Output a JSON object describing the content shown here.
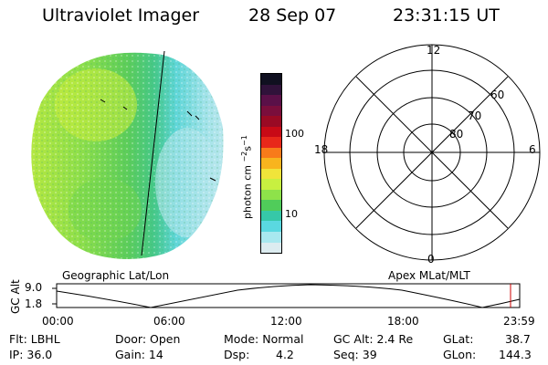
{
  "header": {
    "instrument": "Ultraviolet Imager",
    "date": "28 Sep 07",
    "time": "23:31:15 UT"
  },
  "colorbar": {
    "unit_label": "photon cm",
    "unit_exp1": "−2",
    "unit_s": "s",
    "unit_exp2": "−1",
    "tick_100": "100",
    "tick_10": "10",
    "colors": [
      "#101020",
      "#30123a",
      "#5a1048",
      "#7a0e3c",
      "#9a0a24",
      "#c80a16",
      "#e8281a",
      "#f87b1a",
      "#f8b41e",
      "#f0e43a",
      "#c8f040",
      "#8ee24a",
      "#50cc5a",
      "#36c8a8",
      "#5ad8e0",
      "#a8e8ef",
      "#dcecf0"
    ]
  },
  "polar_plot": {
    "mlt_labels": {
      "top": "12",
      "left": "18",
      "right": "6",
      "bottom": "0"
    },
    "lat_labels": [
      "60",
      "70",
      "80"
    ]
  },
  "map_captions": {
    "left": "Geographic Lat/Lon",
    "right": "Apex MLat/MLT"
  },
  "altitude_plot": {
    "ylabel": "GC Alt",
    "ytick_top": "9.0",
    "ytick_bottom": "1.8",
    "xticks": [
      "00:00",
      "06:00",
      "12:00",
      "18:00",
      "23:59"
    ],
    "marker_color": "#cc0000"
  },
  "info": {
    "flt": "Flt: LBHL",
    "ip": "IP: 36.0",
    "door": "Door: Open",
    "gain": "Gain: 14",
    "mode": "Mode: Normal",
    "dsp_label": "Dsp:",
    "dsp_value": "4.2",
    "gc_alt": "GC Alt: 2.4 Re",
    "seq": "Seq: 39",
    "glat_label": "GLat:",
    "glat_value": "38.7",
    "glon_label": "GLon:",
    "glon_value": "144.3"
  }
}
